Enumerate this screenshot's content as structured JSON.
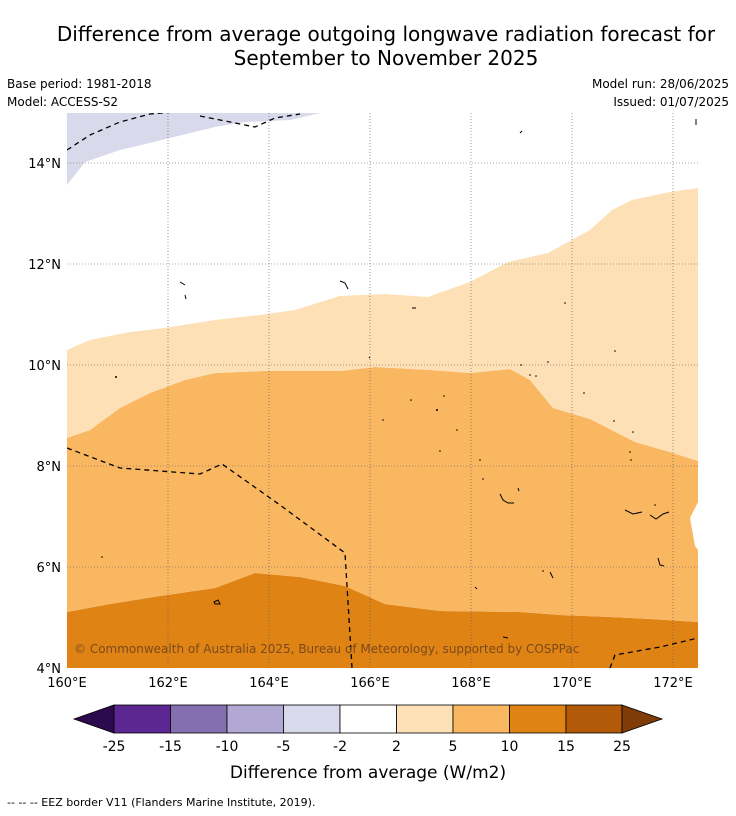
{
  "title_line1": "Difference from average outgoing longwave radiation forecast for",
  "title_line2": "September to November 2025",
  "base_period": "Base period: 1981-2018",
  "model": "Model: ACCESS-S2",
  "model_run": "Model run: 28/06/2025",
  "issued": "Issued: 01/07/2025",
  "map": {
    "lat_labels": [
      "14°N",
      "12°N",
      "10°N",
      "8°N",
      "6°N",
      "4°N"
    ],
    "lon_labels": [
      "160°E",
      "162°E",
      "164°E",
      "166°E",
      "168°E",
      "170°E",
      "172°E"
    ],
    "copyright": "© Commonwealth of Australia 2025, Bureau of Meteorology, supported by COSPPac"
  },
  "colorbar": {
    "tick_labels": [
      "-25",
      "-15",
      "-10",
      "-5",
      "-2",
      "2",
      "5",
      "10",
      "15",
      "25"
    ],
    "label": "Difference from average (W/m2)",
    "colors": [
      "#2d0a4e",
      "#5c2790",
      "#8470b0",
      "#b1a8d4",
      "#d9d9ec",
      "#ffffff",
      "#fde0b5",
      "#f9b762",
      "#e08315",
      "#b25a08",
      "#7f3b08"
    ]
  },
  "footnote": "--  --  -- EEZ border V11 (Flanders Marine Institute, 2019)."
}
